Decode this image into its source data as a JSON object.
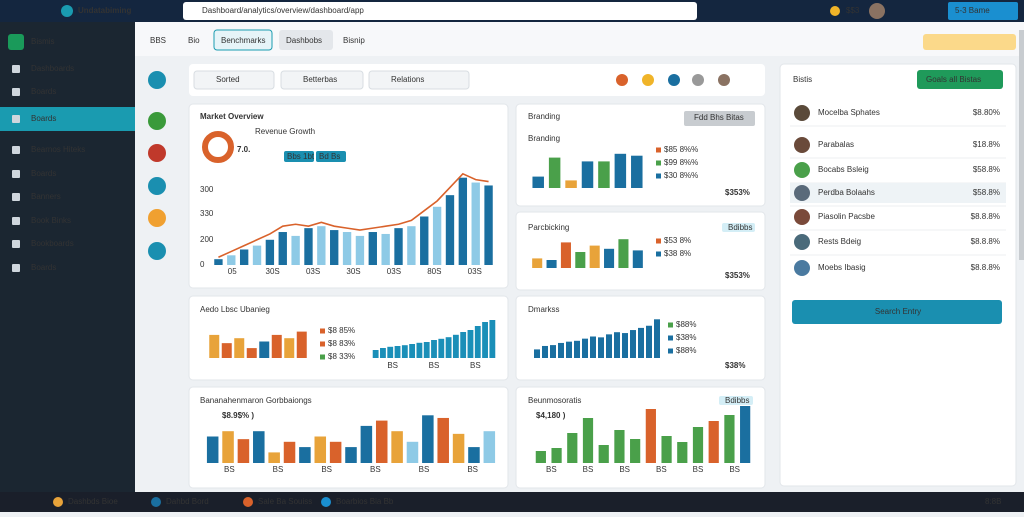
{
  "browser": {
    "tab": "Undatabiming",
    "url": "Dashboard/analytics/overview/dashboard/app",
    "badge": "$$3",
    "user": "5-3 Bame"
  },
  "sidebar": {
    "title": "Bismis",
    "items": [
      "Dashboards",
      "Boards",
      "Boards",
      "Bearnos Hiteks",
      "Boards",
      "Banners",
      "Book Binks",
      "Bookboards",
      "Boards"
    ]
  },
  "toolbar": {
    "tabs": [
      "BBS",
      "Bio",
      "Benchmarks",
      "Dashbobs",
      "Bisnip"
    ]
  },
  "filters": [
    "Sorted",
    "Betterbas",
    "Relations"
  ],
  "cards": [
    {
      "title": "Market Overview",
      "kpi": "7.0.",
      "label": "Revenue Growth",
      "badges": [
        "Bbs 1bt",
        "Bd Bs"
      ],
      "axis_labels": [
        "300",
        "330",
        "200",
        "0"
      ],
      "categories": [
        "05",
        "30S",
        "03S",
        "30S",
        "03S",
        "80S",
        "03S"
      ],
      "ylim": [
        0,
        100
      ],
      "values": [
        6,
        10,
        16,
        20,
        26,
        34,
        30,
        38,
        40,
        36,
        34,
        30,
        34,
        32,
        38,
        40,
        50,
        60,
        72,
        90,
        85,
        82
      ],
      "colors": [
        "#1a6fa0",
        "#8ecae6",
        "#1a6fa0",
        "#8ecae6",
        "#1a6fa0",
        "#1a6fa0",
        "#8ecae6",
        "#1a6fa0",
        "#8ecae6",
        "#1a6fa0",
        "#8ecae6",
        "#8ecae6",
        "#1a6fa0",
        "#8ecae6",
        "#1a6fa0",
        "#8ecae6",
        "#1a6fa0",
        "#8ecae6",
        "#1a6fa0",
        "#1a6fa0",
        "#8ecae6",
        "#1a6fa0"
      ],
      "line": [
        8,
        14,
        20,
        26,
        32,
        40,
        42,
        40,
        44,
        40,
        38,
        36,
        38,
        40,
        42,
        46,
        56,
        66,
        80,
        94,
        88,
        86
      ],
      "line_color": "#d9622b"
    },
    {
      "title": "Branding",
      "button": "Fdd Bhs Bitas",
      "ylim": [
        0,
        100
      ],
      "values": [
        30,
        80,
        20,
        70,
        70,
        90,
        85
      ],
      "colors": [
        "#1a6fa0",
        "#4aa04a",
        "#e8a33a",
        "#1a6fa0",
        "#4aa04a",
        "#1a6fa0",
        "#1a6fa0"
      ],
      "legend": [
        {
          "label": "$85 8%%",
          "color": "#d9622b"
        },
        {
          "label": "$99 8%%",
          "color": "#4aa04a"
        },
        {
          "label": "$30 8%%",
          "color": "#1a6fa0"
        }
      ],
      "footer": "$353%"
    },
    {
      "title": "Parcbicking",
      "button": "Bdibbs",
      "ylim": [
        0,
        100
      ],
      "values": [
        30,
        25,
        80,
        50,
        70,
        60,
        90,
        55
      ],
      "colors": [
        "#e8a33a",
        "#1a6fa0",
        "#d9622b",
        "#4aa04a",
        "#e8a33a",
        "#1a6fa0",
        "#4aa04a",
        "#1a6fa0"
      ],
      "legend": [
        {
          "label": "$53 8%",
          "color": "#d9622b"
        },
        {
          "label": "$38 8%",
          "color": "#1a6fa0"
        }
      ],
      "footer": "$353%"
    },
    {
      "title": "Aedo Lbsc Ubanieg",
      "ylim": [
        0,
        100
      ],
      "values": [
        70,
        45,
        60,
        30,
        50,
        70,
        60,
        80
      ],
      "colors": [
        "#e8a33a",
        "#d9622b",
        "#e8a33a",
        "#d9622b",
        "#1a6fa0",
        "#d9622b",
        "#e8a33a",
        "#d9622b"
      ],
      "legend": [
        {
          "label": "$8 85%",
          "color": "#d9622b"
        },
        {
          "label": "$8 83%",
          "color": "#d9622b"
        },
        {
          "label": "$8 33%",
          "color": "#4aa04a"
        }
      ],
      "values2": [
        20,
        25,
        28,
        30,
        32,
        35,
        38,
        40,
        45,
        48,
        52,
        58,
        65,
        70,
        80,
        90,
        95
      ],
      "categories": [
        "BS",
        "BS",
        "BS"
      ]
    },
    {
      "title": "Dmarkss",
      "ylim": [
        0,
        100
      ],
      "values": [
        20,
        28,
        30,
        35,
        38,
        40,
        45,
        50,
        48,
        55,
        60,
        58,
        65,
        70,
        75,
        90
      ],
      "colors": [
        "#1a6fa0",
        "#1a6fa0",
        "#1a6fa0",
        "#1a6fa0",
        "#1a6fa0",
        "#1a6fa0",
        "#1a6fa0",
        "#1a6fa0",
        "#1a6fa0",
        "#1a6fa0",
        "#1a6fa0",
        "#1a6fa0",
        "#1a6fa0",
        "#1a6fa0",
        "#1a6fa0",
        "#1a6fa0"
      ],
      "legend": [
        {
          "label": "$88%",
          "color": "#4aa04a"
        },
        {
          "label": "$38%",
          "color": "#1a6fa0"
        },
        {
          "label": "$88%",
          "color": "#1a6fa0"
        }
      ],
      "footer": "$38%"
    },
    {
      "title": "Bananahenmaron Gorbbaiongs",
      "kpi": "$8.9$% )",
      "ylim": [
        0,
        100
      ],
      "values": [
        50,
        60,
        45,
        60,
        20,
        40,
        30,
        50,
        40,
        30,
        70,
        80,
        60,
        40,
        90,
        85,
        55,
        30,
        60
      ],
      "colors": [
        "#1a6fa0",
        "#e8a33a",
        "#d9622b",
        "#1a6fa0",
        "#e8a33a",
        "#d9622b",
        "#1a6fa0",
        "#e8a33a",
        "#d9622b",
        "#1a6fa0",
        "#1a6fa0",
        "#d9622b",
        "#e8a33a",
        "#8ecae6",
        "#1a6fa0",
        "#d9622b",
        "#e8a33a",
        "#1a6fa0",
        "#8ecae6"
      ],
      "categories": [
        "BS",
        "BS",
        "BS",
        "BS",
        "BS",
        "BS"
      ]
    },
    {
      "title": "Beunmosoratis",
      "kpi": "$4,180 )",
      "button": "Bdibbs",
      "ylim": [
        0,
        100
      ],
      "values": [
        20,
        25,
        50,
        75,
        30,
        55,
        40,
        90,
        45,
        35,
        60,
        70,
        80,
        95
      ],
      "colors": [
        "#4aa04a",
        "#4aa04a",
        "#4aa04a",
        "#4aa04a",
        "#4aa04a",
        "#4aa04a",
        "#4aa04a",
        "#d9622b",
        "#4aa04a",
        "#4aa04a",
        "#4aa04a",
        "#d9622b",
        "#4aa04a",
        "#1a6fa0"
      ],
      "categories": [
        "BS",
        "BS",
        "BS",
        "BS",
        "BS",
        "BS"
      ]
    }
  ],
  "panel": {
    "title": "Bistis",
    "button": "Goals all Bistas",
    "action": "Search Entry",
    "items": [
      {
        "name": "Mocelba Sphates",
        "value": "$8.80%"
      },
      {
        "name": "Parabalas",
        "value": "$18.8%"
      },
      {
        "name": "Bocabs Bsleig",
        "value": "$58.8%"
      },
      {
        "name": "Perdba Bolaahs",
        "value": "$58.8%"
      },
      {
        "name": "Piasolin Pacsbe",
        "value": "$8.8.8%"
      },
      {
        "name": "Rests Bdeig",
        "value": "$8.8.8%"
      },
      {
        "name": "Moebs Ibasig",
        "value": "$8.8.8%"
      }
    ]
  },
  "taskbar": {
    "items": [
      "Dashbds Bioe",
      "Dahbd Bord",
      "Sale Ba Souiss",
      "Boarbios Bia Bb"
    ],
    "clock": "8:8B"
  }
}
